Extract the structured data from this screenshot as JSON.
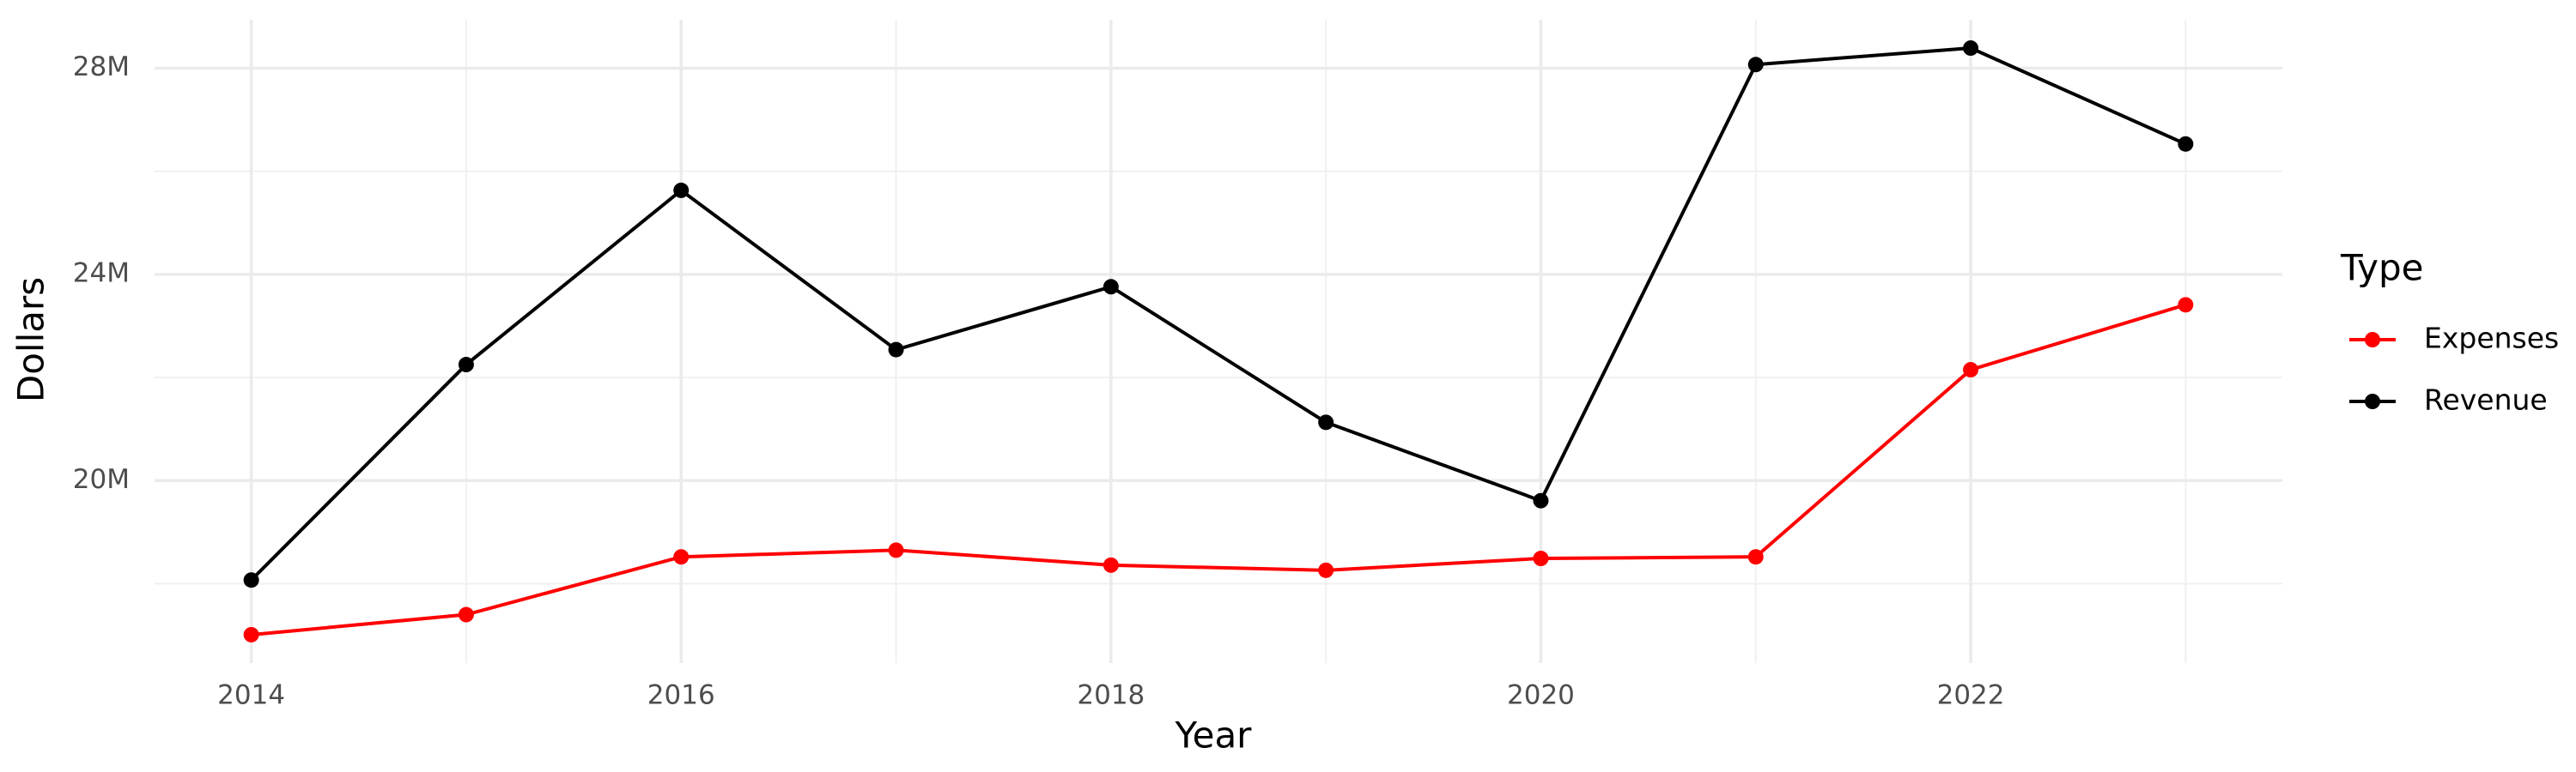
{
  "chart_data": {
    "type": "line",
    "x_label": "Year",
    "y_label": "Dollars",
    "legend_title": "Type",
    "x": [
      2014,
      2015,
      2016,
      2017,
      2018,
      2019,
      2020,
      2021,
      2022,
      2023
    ],
    "series": [
      {
        "name": "Expenses",
        "color": "#ff0000",
        "values": [
          17010000,
          17400000,
          18520000,
          18650000,
          18360000,
          18260000,
          18490000,
          18520000,
          22150000,
          23410000
        ]
      },
      {
        "name": "Revenue",
        "color": "#000000",
        "values": [
          18070000,
          22250000,
          25630000,
          22540000,
          23760000,
          21130000,
          19610000,
          28070000,
          28390000,
          26530000
        ]
      }
    ],
    "xlim": [
      2013.55,
      2023.45
    ],
    "xticks": [
      2014,
      2016,
      2018,
      2020,
      2022
    ],
    "ylim": [
      16460000,
      28940000
    ],
    "yticks": [
      {
        "value": 20000000,
        "label": "20M"
      },
      {
        "value": 24000000,
        "label": "24M"
      },
      {
        "value": 28000000,
        "label": "28M"
      }
    ],
    "grid": true,
    "legend": "right"
  }
}
